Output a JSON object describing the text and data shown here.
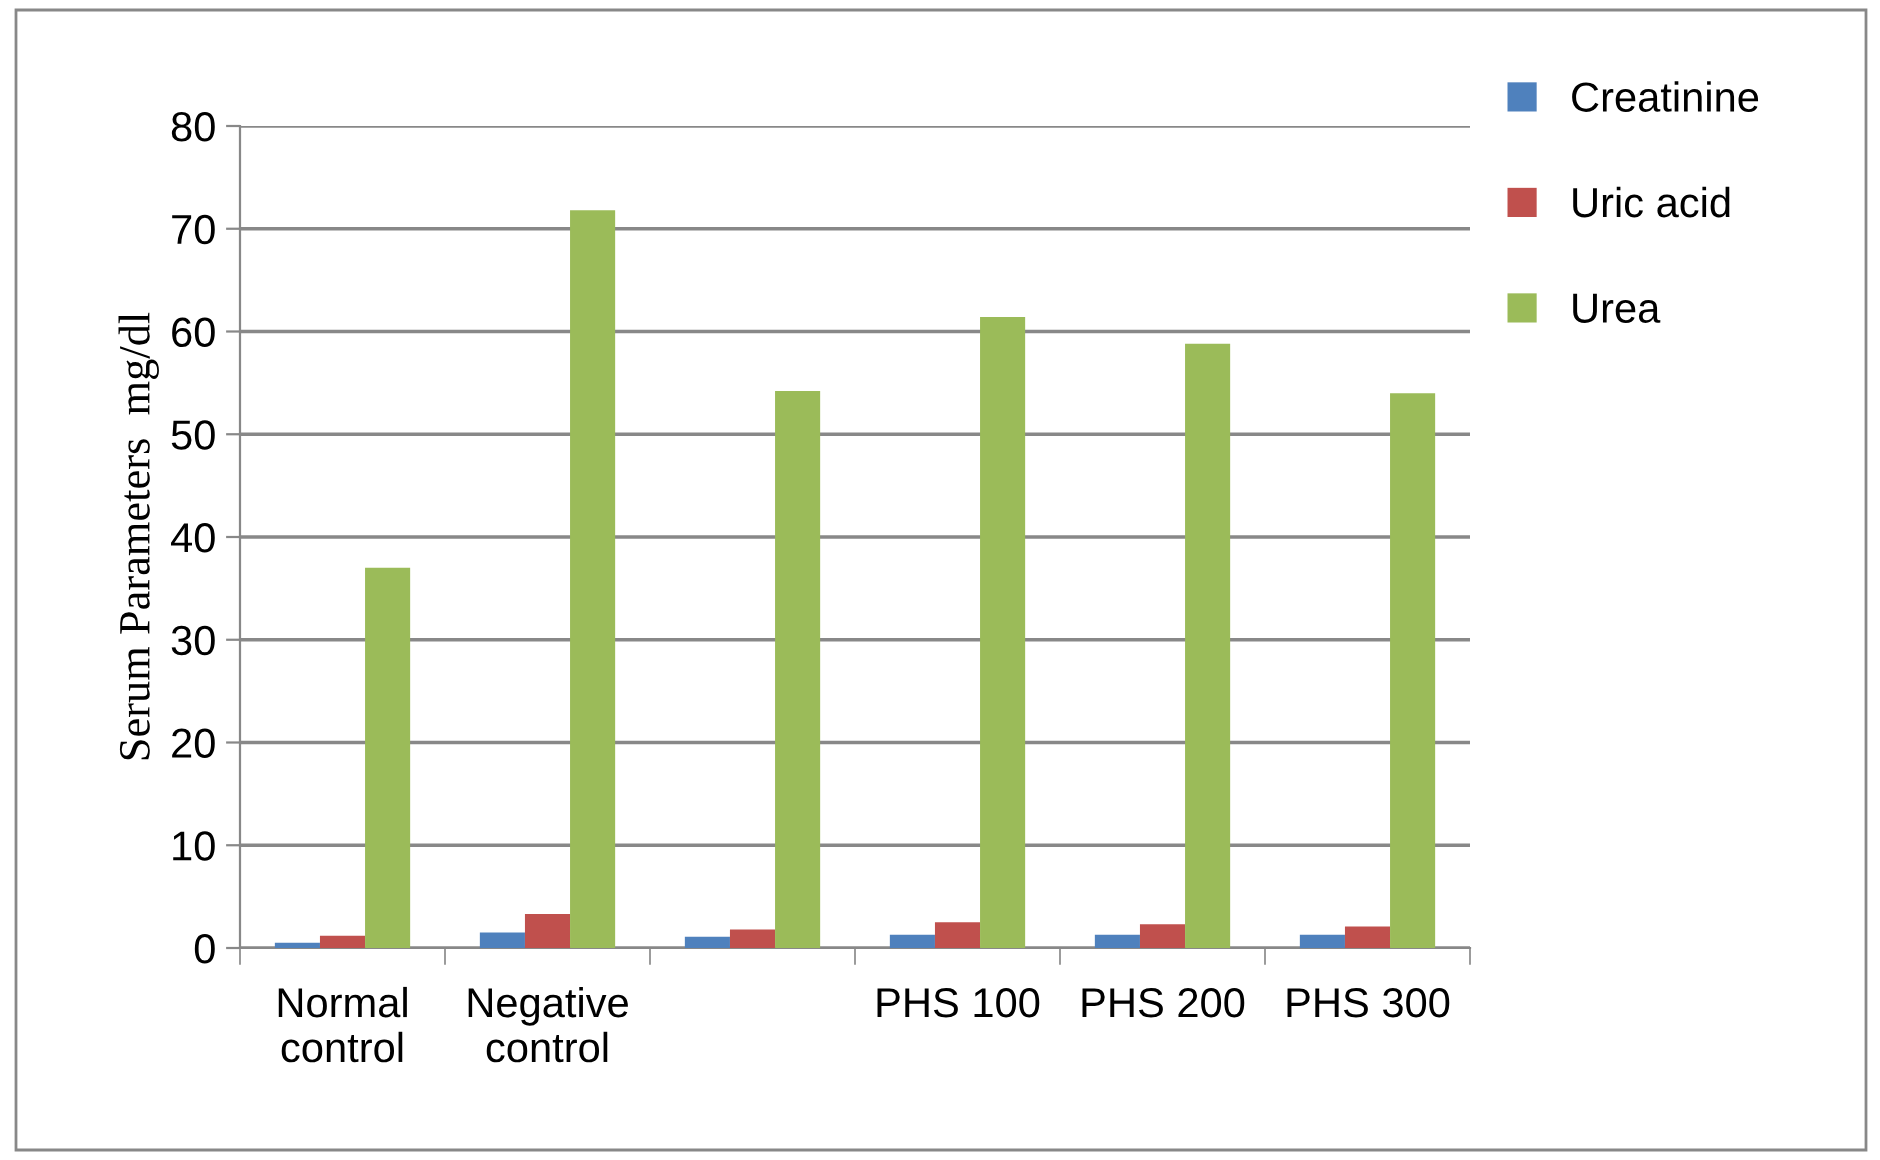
{
  "chart_data": {
    "type": "bar",
    "ylabel": "Serum Parameters  mg/dl",
    "categories": [
      "Normal\ncontrol",
      "Negative\ncontrol",
      null,
      "PHS 100",
      "PHS 200",
      "PHS 300"
    ],
    "series": [
      {
        "name": "Creatinine",
        "color": "#4f81bd",
        "values": [
          0.5,
          1.5,
          1.1,
          1.3,
          1.3,
          1.3
        ]
      },
      {
        "name": "Uric acid",
        "color": "#c0504d",
        "values": [
          1.2,
          3.3,
          1.8,
          2.5,
          2.3,
          2.1
        ]
      },
      {
        "name": "Urea",
        "color": "#9bbb59",
        "values": [
          37,
          71.8,
          54.2,
          61.4,
          58.8,
          54
        ]
      }
    ],
    "ylim": [
      0,
      80
    ],
    "yticks": [
      0,
      10,
      20,
      30,
      40,
      50,
      60,
      70,
      80
    ],
    "grid": "y",
    "legend": "top right"
  }
}
